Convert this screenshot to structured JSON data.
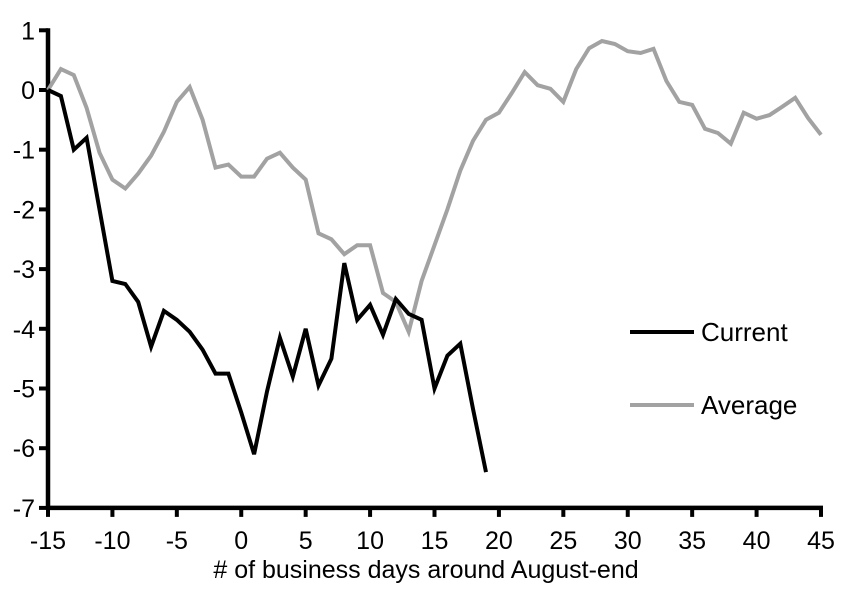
{
  "chart_data": {
    "type": "line",
    "title": "",
    "xlabel": "# of business days around August-end",
    "ylabel": "",
    "xlim": [
      -15,
      45
    ],
    "ylim": [
      -7,
      1
    ],
    "x_ticks": [
      -15,
      -10,
      -5,
      0,
      5,
      10,
      15,
      20,
      25,
      30,
      35,
      40,
      45
    ],
    "y_ticks": [
      1,
      0,
      -1,
      -2,
      -3,
      -4,
      -5,
      -6,
      -7
    ],
    "grid": false,
    "legend_position": "right-middle",
    "axis_color": "#000000",
    "series": [
      {
        "name": "Average",
        "color": "#a2a2a2",
        "x": [
          -15,
          -14,
          -13,
          -12,
          -11,
          -10,
          -9,
          -8,
          -7,
          -6,
          -5,
          -4,
          -3,
          -2,
          -1,
          0,
          1,
          2,
          3,
          4,
          5,
          6,
          7,
          8,
          9,
          10,
          11,
          12,
          13,
          14,
          15,
          16,
          17,
          18,
          19,
          20,
          21,
          22,
          23,
          24,
          25,
          26,
          27,
          28,
          29,
          30,
          31,
          32,
          33,
          34,
          35,
          36,
          37,
          38,
          39,
          40,
          41,
          42,
          43,
          44,
          45
        ],
        "y": [
          0.0,
          0.35,
          0.25,
          -0.3,
          -1.05,
          -1.5,
          -1.65,
          -1.4,
          -1.1,
          -0.7,
          -0.2,
          0.05,
          -0.5,
          -1.3,
          -1.25,
          -1.45,
          -1.45,
          -1.15,
          -1.05,
          -1.3,
          -1.5,
          -2.4,
          -2.5,
          -2.75,
          -2.6,
          -2.6,
          -3.4,
          -3.55,
          -4.05,
          -3.2,
          -2.6,
          -2.0,
          -1.35,
          -0.85,
          -0.5,
          -0.38,
          -0.05,
          0.3,
          0.08,
          0.02,
          -0.2,
          0.35,
          0.7,
          0.82,
          0.77,
          0.65,
          0.62,
          0.69,
          0.15,
          -0.2,
          -0.25,
          -0.65,
          -0.72,
          -0.9,
          -0.38,
          -0.48,
          -0.42,
          -0.28,
          -0.13,
          -0.47,
          -0.75
        ]
      },
      {
        "name": "Current",
        "color": "#000000",
        "x": [
          -15,
          -14,
          -13,
          -12,
          -11,
          -10,
          -9,
          -8,
          -7,
          -6,
          -5,
          -4,
          -3,
          -2,
          -1,
          0,
          1,
          2,
          3,
          4,
          5,
          6,
          7,
          8,
          9,
          10,
          11,
          12,
          13,
          14,
          15,
          16,
          17,
          18,
          19
        ],
        "y": [
          0.0,
          -0.1,
          -1.0,
          -0.8,
          -2.0,
          -3.2,
          -3.25,
          -3.55,
          -4.3,
          -3.7,
          -3.85,
          -4.05,
          -4.35,
          -4.75,
          -4.75,
          -5.4,
          -6.1,
          -5.05,
          -4.15,
          -4.8,
          -4.0,
          -4.95,
          -4.5,
          -2.9,
          -3.85,
          -3.6,
          -4.1,
          -3.5,
          -3.75,
          -3.85,
          -5.0,
          -4.45,
          -4.25,
          -5.35,
          -6.4
        ]
      }
    ]
  }
}
